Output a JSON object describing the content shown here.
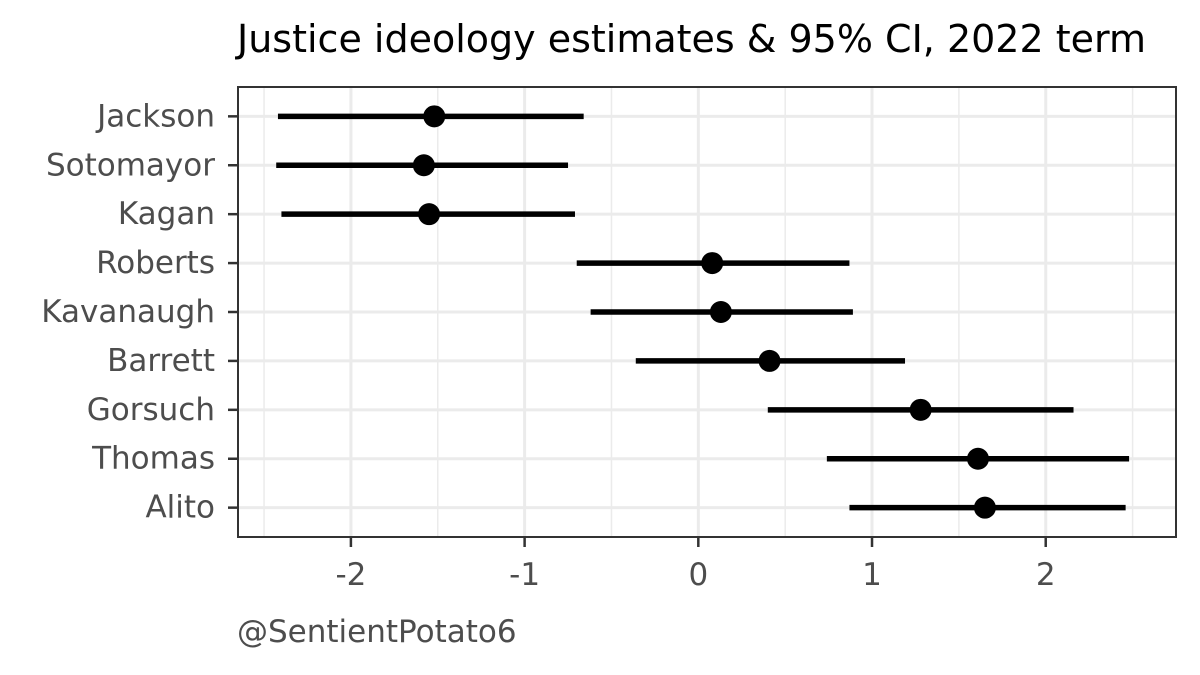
{
  "chart_data": {
    "type": "scatter",
    "subtype": "point-range (dot-and-whisker)",
    "title": "Justice ideology estimates & 95% CI, 2022 term",
    "caption": "@SentientPotato6",
    "xlabel": "",
    "ylabel": "",
    "xlim": [
      -2.65,
      2.75
    ],
    "x_ticks": [
      -2,
      -1,
      0,
      1,
      2
    ],
    "x_tick_labels": [
      "-2",
      "-1",
      "0",
      "1",
      "2"
    ],
    "grid": true,
    "theme": "black-and-white",
    "categories": [
      "Jackson",
      "Sotomayor",
      "Kagan",
      "Roberts",
      "Kavanaugh",
      "Barrett",
      "Gorsuch",
      "Thomas",
      "Alito"
    ],
    "estimates": [
      -1.52,
      -1.58,
      -1.55,
      0.08,
      0.13,
      0.41,
      1.28,
      1.61,
      1.65
    ],
    "ci_low": [
      -2.42,
      -2.43,
      -2.4,
      -0.7,
      -0.62,
      -0.36,
      0.4,
      0.74,
      0.87
    ],
    "ci_high": [
      -0.66,
      -0.75,
      -0.71,
      0.87,
      0.89,
      1.19,
      2.16,
      2.48,
      2.46
    ],
    "point_color": "#000000"
  }
}
